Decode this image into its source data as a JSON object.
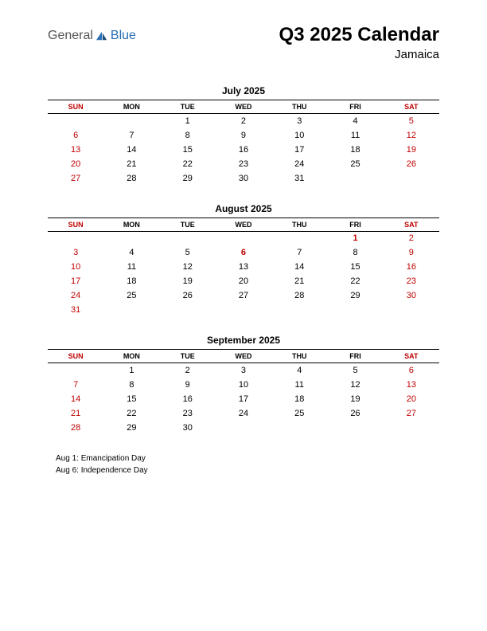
{
  "logo": {
    "text1": "General",
    "text2": "Blue"
  },
  "header": {
    "title": "Q3 2025 Calendar",
    "subtitle": "Jamaica"
  },
  "day_headers": [
    "SUN",
    "MON",
    "TUE",
    "WED",
    "THU",
    "FRI",
    "SAT"
  ],
  "colors": {
    "weekend": "#c00000",
    "holiday": "#c00000",
    "text": "#000000",
    "border": "#000000"
  },
  "months": [
    {
      "title": "July 2025",
      "weeks": [
        [
          {
            "d": ""
          },
          {
            "d": ""
          },
          {
            "d": "1"
          },
          {
            "d": "2"
          },
          {
            "d": "3"
          },
          {
            "d": "4"
          },
          {
            "d": "5",
            "w": true
          }
        ],
        [
          {
            "d": "6",
            "w": true
          },
          {
            "d": "7"
          },
          {
            "d": "8"
          },
          {
            "d": "9"
          },
          {
            "d": "10"
          },
          {
            "d": "11"
          },
          {
            "d": "12",
            "w": true
          }
        ],
        [
          {
            "d": "13",
            "w": true
          },
          {
            "d": "14"
          },
          {
            "d": "15"
          },
          {
            "d": "16"
          },
          {
            "d": "17"
          },
          {
            "d": "18"
          },
          {
            "d": "19",
            "w": true
          }
        ],
        [
          {
            "d": "20",
            "w": true
          },
          {
            "d": "21"
          },
          {
            "d": "22"
          },
          {
            "d": "23"
          },
          {
            "d": "24"
          },
          {
            "d": "25"
          },
          {
            "d": "26",
            "w": true
          }
        ],
        [
          {
            "d": "27",
            "w": true
          },
          {
            "d": "28"
          },
          {
            "d": "29"
          },
          {
            "d": "30"
          },
          {
            "d": "31"
          },
          {
            "d": ""
          },
          {
            "d": ""
          }
        ]
      ]
    },
    {
      "title": "August 2025",
      "weeks": [
        [
          {
            "d": ""
          },
          {
            "d": ""
          },
          {
            "d": ""
          },
          {
            "d": ""
          },
          {
            "d": ""
          },
          {
            "d": "1",
            "h": true
          },
          {
            "d": "2",
            "w": true
          }
        ],
        [
          {
            "d": "3",
            "w": true
          },
          {
            "d": "4"
          },
          {
            "d": "5"
          },
          {
            "d": "6",
            "h": true
          },
          {
            "d": "7"
          },
          {
            "d": "8"
          },
          {
            "d": "9",
            "w": true
          }
        ],
        [
          {
            "d": "10",
            "w": true
          },
          {
            "d": "11"
          },
          {
            "d": "12"
          },
          {
            "d": "13"
          },
          {
            "d": "14"
          },
          {
            "d": "15"
          },
          {
            "d": "16",
            "w": true
          }
        ],
        [
          {
            "d": "17",
            "w": true
          },
          {
            "d": "18"
          },
          {
            "d": "19"
          },
          {
            "d": "20"
          },
          {
            "d": "21"
          },
          {
            "d": "22"
          },
          {
            "d": "23",
            "w": true
          }
        ],
        [
          {
            "d": "24",
            "w": true
          },
          {
            "d": "25"
          },
          {
            "d": "26"
          },
          {
            "d": "27"
          },
          {
            "d": "28"
          },
          {
            "d": "29"
          },
          {
            "d": "30",
            "w": true
          }
        ],
        [
          {
            "d": "31",
            "w": true
          },
          {
            "d": ""
          },
          {
            "d": ""
          },
          {
            "d": ""
          },
          {
            "d": ""
          },
          {
            "d": ""
          },
          {
            "d": ""
          }
        ]
      ]
    },
    {
      "title": "September 2025",
      "weeks": [
        [
          {
            "d": ""
          },
          {
            "d": "1"
          },
          {
            "d": "2"
          },
          {
            "d": "3"
          },
          {
            "d": "4"
          },
          {
            "d": "5"
          },
          {
            "d": "6",
            "w": true
          }
        ],
        [
          {
            "d": "7",
            "w": true
          },
          {
            "d": "8"
          },
          {
            "d": "9"
          },
          {
            "d": "10"
          },
          {
            "d": "11"
          },
          {
            "d": "12"
          },
          {
            "d": "13",
            "w": true
          }
        ],
        [
          {
            "d": "14",
            "w": true
          },
          {
            "d": "15"
          },
          {
            "d": "16"
          },
          {
            "d": "17"
          },
          {
            "d": "18"
          },
          {
            "d": "19"
          },
          {
            "d": "20",
            "w": true
          }
        ],
        [
          {
            "d": "21",
            "w": true
          },
          {
            "d": "22"
          },
          {
            "d": "23"
          },
          {
            "d": "24"
          },
          {
            "d": "25"
          },
          {
            "d": "26"
          },
          {
            "d": "27",
            "w": true
          }
        ],
        [
          {
            "d": "28",
            "w": true
          },
          {
            "d": "29"
          },
          {
            "d": "30"
          },
          {
            "d": ""
          },
          {
            "d": ""
          },
          {
            "d": ""
          },
          {
            "d": ""
          }
        ]
      ]
    }
  ],
  "holidays": [
    "Aug 1: Emancipation Day",
    "Aug 6: Independence Day"
  ]
}
